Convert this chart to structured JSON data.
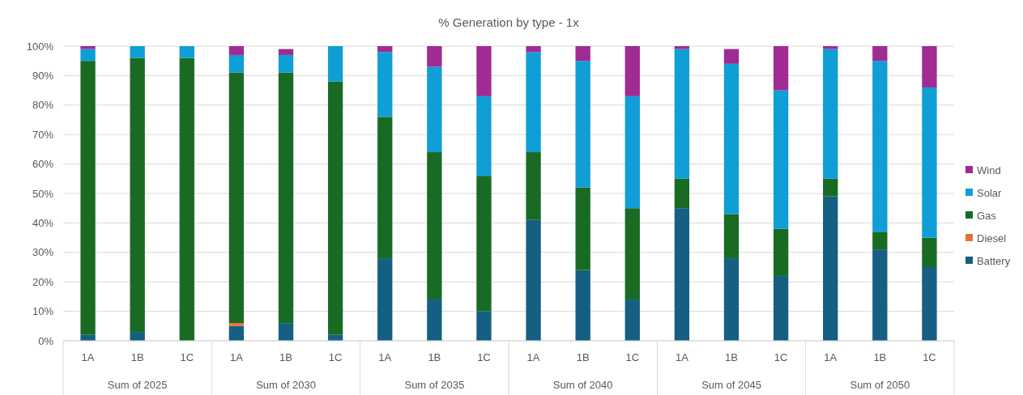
{
  "chart_data": {
    "type": "bar",
    "title": "% Generation by type - 1x",
    "stacked": true,
    "categories": [
      "1A",
      "1B",
      "1C",
      "1A",
      "1B",
      "1C",
      "1A",
      "1B",
      "1C",
      "1A",
      "1B",
      "1C",
      "1A",
      "1B",
      "1C",
      "1A",
      "1B",
      "1C"
    ],
    "annotations": [
      "Sum of 2025",
      "Sum of 2030",
      "Sum of 2035",
      "Sum of 2040",
      "Sum of 2045",
      "Sum of 2050"
    ],
    "series": [
      {
        "name": "Battery",
        "color": "#156082",
        "values": [
          2,
          3,
          0,
          5,
          6,
          2,
          28,
          14,
          10,
          41,
          24,
          14,
          45,
          28,
          22,
          49,
          31,
          25
        ]
      },
      {
        "name": "Diesel",
        "color": "#e97132",
        "values": [
          0,
          0,
          0,
          1,
          0,
          0,
          0,
          0,
          0,
          0,
          0,
          0,
          0,
          0,
          0,
          0,
          0,
          0
        ]
      },
      {
        "name": "Gas",
        "color": "#196b24",
        "values": [
          93,
          93,
          96,
          85,
          85,
          86,
          48,
          50,
          46,
          23,
          28,
          31,
          10,
          15,
          16,
          6,
          6,
          10
        ]
      },
      {
        "name": "Solar",
        "color": "#0f9ed5",
        "values": [
          4,
          4,
          4,
          6,
          6,
          12,
          22,
          29,
          27,
          34,
          43,
          38,
          44,
          51,
          47,
          44,
          58,
          51
        ]
      },
      {
        "name": "Wind",
        "color": "#a02b93",
        "values": [
          1,
          0,
          0,
          3,
          2,
          0,
          2,
          7,
          17,
          2,
          5,
          17,
          1,
          5,
          15,
          1,
          5,
          14
        ]
      }
    ],
    "ylim": [
      0,
      100
    ],
    "yticks": [
      {
        "value": 0,
        "label": "0%"
      },
      {
        "value": 10,
        "label": "10%"
      },
      {
        "value": 20,
        "label": "20%"
      },
      {
        "value": 30,
        "label": "30%"
      },
      {
        "value": 40,
        "label": "40%"
      },
      {
        "value": 50,
        "label": "50%"
      },
      {
        "value": 60,
        "label": "60%"
      },
      {
        "value": 70,
        "label": "70%"
      },
      {
        "value": 80,
        "label": "80%"
      },
      {
        "value": 90,
        "label": "90%"
      },
      {
        "value": 100,
        "label": "100%"
      }
    ],
    "grid": "y",
    "legend": "right"
  }
}
